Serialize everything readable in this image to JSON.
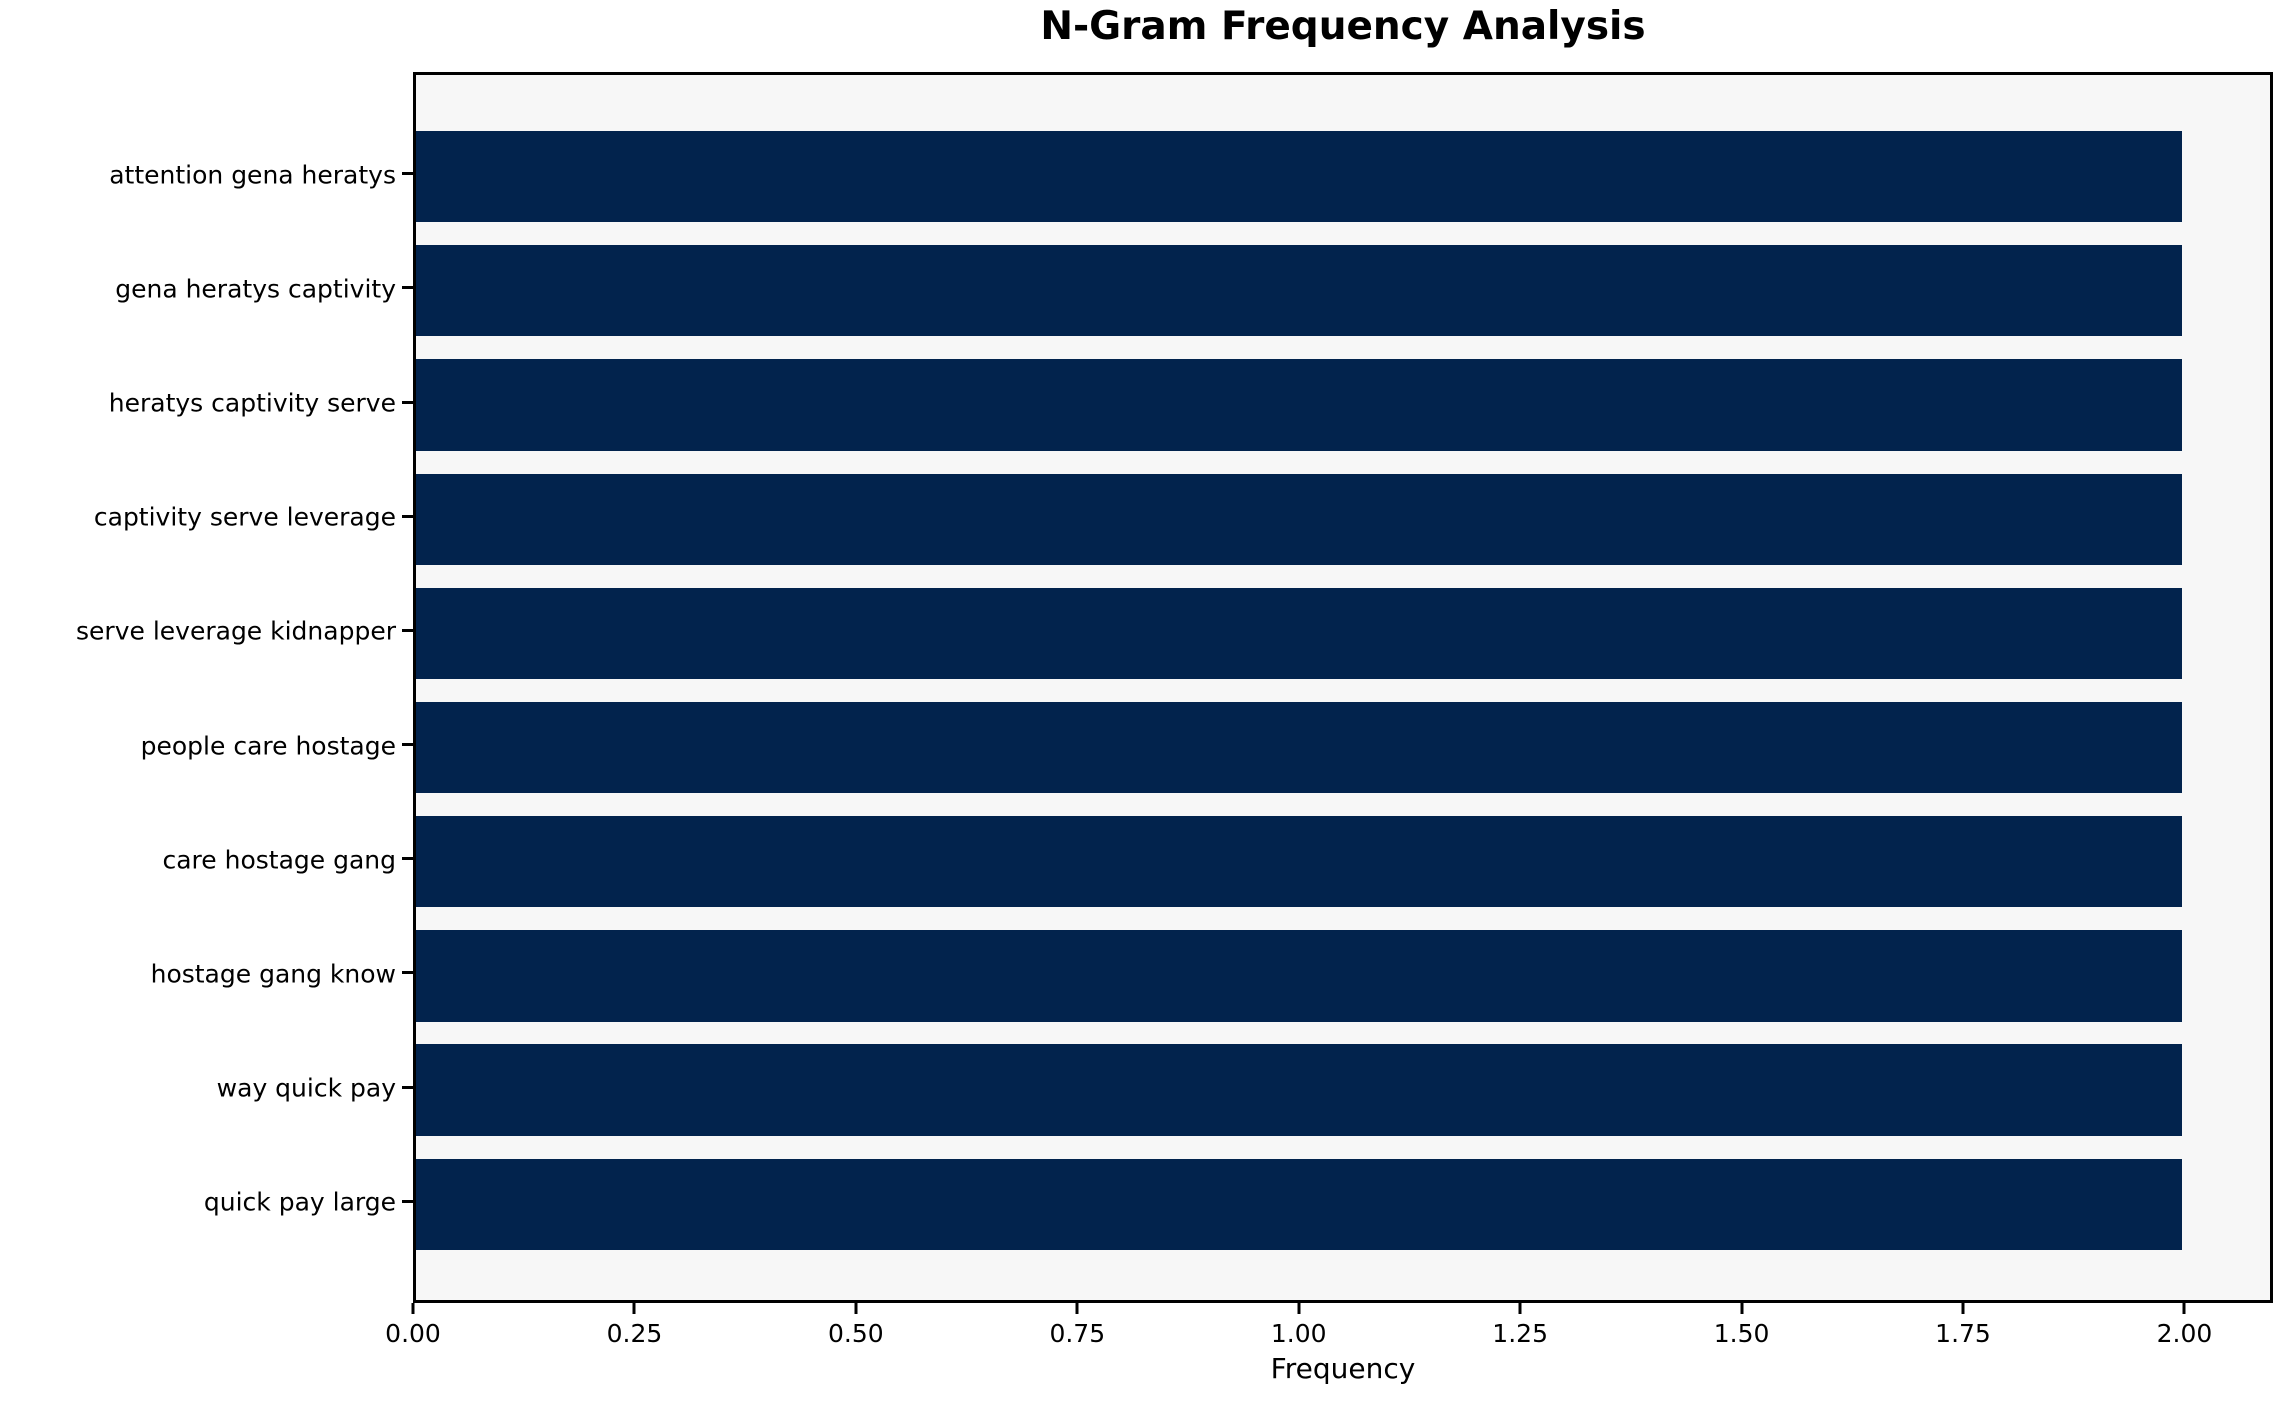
{
  "chart_data": {
    "type": "bar",
    "orientation": "horizontal",
    "title": "N-Gram Frequency Analysis",
    "xlabel": "Frequency",
    "ylabel": "",
    "categories": [
      "attention gena heratys",
      "gena heratys captivity",
      "heratys captivity serve",
      "captivity serve leverage",
      "serve leverage kidnapper",
      "people care hostage",
      "care hostage gang",
      "hostage gang know",
      "way quick pay",
      "quick pay large"
    ],
    "values": [
      2,
      2,
      2,
      2,
      2,
      2,
      2,
      2,
      2,
      2
    ],
    "xlim": [
      0,
      2.1
    ],
    "x_ticks": [
      {
        "value": 0.0,
        "label": "0.00"
      },
      {
        "value": 0.25,
        "label": "0.25"
      },
      {
        "value": 0.5,
        "label": "0.50"
      },
      {
        "value": 0.75,
        "label": "0.75"
      },
      {
        "value": 1.0,
        "label": "1.00"
      },
      {
        "value": 1.25,
        "label": "1.25"
      },
      {
        "value": 1.5,
        "label": "1.50"
      },
      {
        "value": 1.75,
        "label": "1.75"
      },
      {
        "value": 2.0,
        "label": "2.00"
      }
    ],
    "grid": false,
    "legend": null,
    "colors": {
      "bar": "#02234d",
      "plot_bg": "#f7f7f7",
      "figure_bg": "#ffffff",
      "spine": "#000000",
      "text": "#000000"
    }
  }
}
